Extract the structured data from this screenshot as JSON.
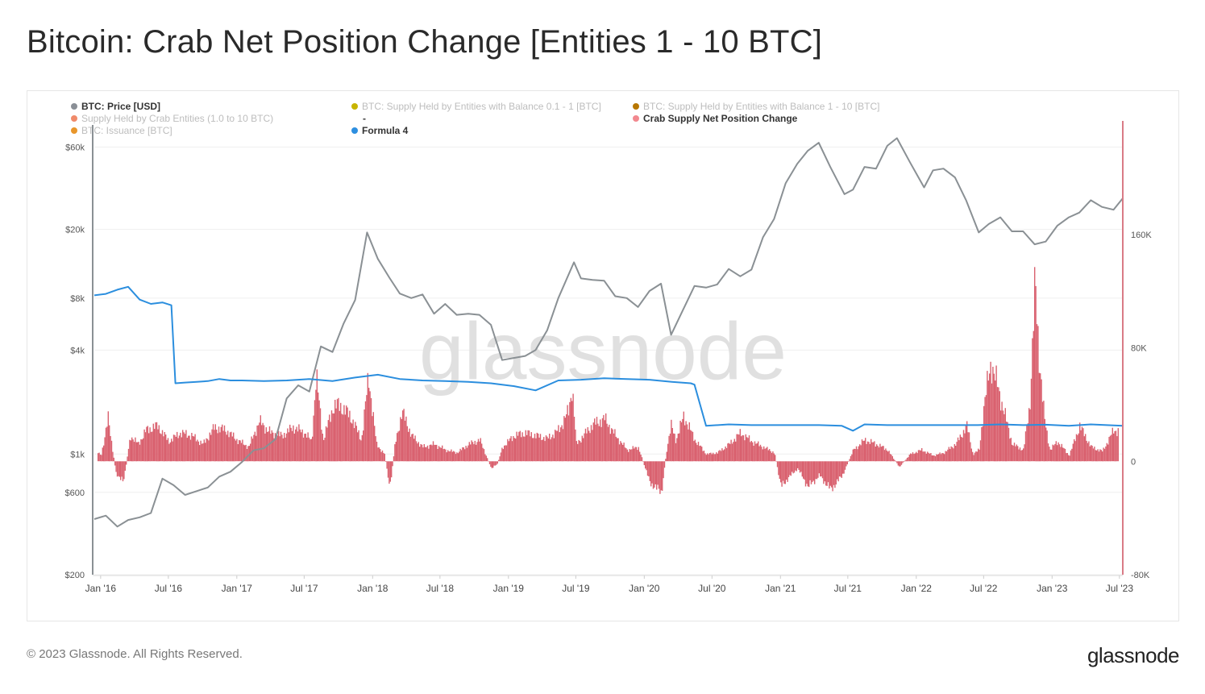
{
  "page": {
    "title": "Bitcoin: Crab Net Position Change [Entities 1 - 10 BTC]",
    "copyright": "© 2023 Glassnode. All Rights Reserved.",
    "brand": "glassnode",
    "watermark": "glassnode"
  },
  "legend": [
    {
      "label": "BTC: Price [USD]",
      "color": "#8a8f96",
      "active": true
    },
    {
      "label": "BTC: Supply Held by Entities with Balance 0.1 - 1 [BTC]",
      "color": "#c8b400",
      "active": false
    },
    {
      "label": "BTC: Supply Held by Entities with Balance 1 - 10 [BTC]",
      "color": "#b87700",
      "active": false
    },
    {
      "label": "Supply Held by Crab Entities (1.0 to 10 BTC)",
      "color": "#f08a6a",
      "active": false
    },
    {
      "label": "-",
      "color": "",
      "active": true
    },
    {
      "label": "Crab Supply Net Position Change",
      "color": "#f2888f",
      "active": true
    },
    {
      "label": "BTC: Issuance [BTC]",
      "color": "#e8962b",
      "active": false
    },
    {
      "label": "Formula 4",
      "color": "#2d8fe0",
      "active": true
    }
  ],
  "colors": {
    "price": "#8a9094",
    "formula": "#2b8ede",
    "net_change": "#d9616f",
    "right_axis": "#d97b86",
    "left_axis": "#8a9094",
    "grid": "#efefef"
  },
  "chart_data": {
    "type": "line",
    "x_ticks": [
      "Jan '16",
      "Jul '16",
      "Jan '17",
      "Jul '17",
      "Jan '18",
      "Jul '18",
      "Jan '19",
      "Jul '19",
      "Jan '20",
      "Jul '20",
      "Jan '21",
      "Jul '21",
      "Jan '22",
      "Jul '22",
      "Jan '23",
      "Jul '23"
    ],
    "x_range": [
      "2015-12-15",
      "2023-07-10"
    ],
    "left_axis": {
      "scale": "log",
      "ticks": [
        "$200",
        "$600",
        "$1k",
        "$4k",
        "$8k",
        "$20k",
        "$60k"
      ],
      "tick_values": [
        200,
        600,
        1000,
        4000,
        8000,
        20000,
        60000
      ],
      "ylim": [
        200,
        85000
      ]
    },
    "right_axis": {
      "scale": "linear",
      "ticks": [
        "-80K",
        "0",
        "80K",
        "160K"
      ],
      "tick_values": [
        -80000,
        0,
        80000,
        160000
      ],
      "ylim": [
        -80000,
        240000
      ]
    },
    "grid": true,
    "series": [
      {
        "name": "BTC: Price [USD]",
        "axis": "left",
        "x": [
          "2015-12-15",
          "2016-01-15",
          "2016-02-15",
          "2016-03-15",
          "2016-04-15",
          "2016-05-15",
          "2016-06-15",
          "2016-07-15",
          "2016-08-15",
          "2016-09-15",
          "2016-10-15",
          "2016-11-15",
          "2016-12-15",
          "2017-01-15",
          "2017-02-15",
          "2017-03-15",
          "2017-04-15",
          "2017-05-15",
          "2017-06-15",
          "2017-07-15",
          "2017-08-15",
          "2017-09-15",
          "2017-10-15",
          "2017-11-15",
          "2017-12-17",
          "2018-01-15",
          "2018-02-15",
          "2018-03-15",
          "2018-04-15",
          "2018-05-15",
          "2018-06-15",
          "2018-07-15",
          "2018-08-15",
          "2018-09-15",
          "2018-10-15",
          "2018-11-15",
          "2018-12-15",
          "2019-01-15",
          "2019-02-15",
          "2019-03-15",
          "2019-04-15",
          "2019-05-15",
          "2019-06-26",
          "2019-07-15",
          "2019-08-15",
          "2019-09-15",
          "2019-10-15",
          "2019-11-15",
          "2019-12-15",
          "2020-01-15",
          "2020-02-15",
          "2020-03-13",
          "2020-04-15",
          "2020-05-15",
          "2020-06-15",
          "2020-07-15",
          "2020-08-15",
          "2020-09-15",
          "2020-10-15",
          "2020-11-15",
          "2020-12-15",
          "2021-01-15",
          "2021-02-15",
          "2021-03-15",
          "2021-04-14",
          "2021-05-15",
          "2021-06-22",
          "2021-07-15",
          "2021-08-15",
          "2021-09-15",
          "2021-10-15",
          "2021-11-10",
          "2021-12-15",
          "2022-01-22",
          "2022-02-15",
          "2022-03-15",
          "2022-04-15",
          "2022-05-15",
          "2022-06-18",
          "2022-07-15",
          "2022-08-15",
          "2022-09-15",
          "2022-10-15",
          "2022-11-15",
          "2022-12-15",
          "2023-01-15",
          "2023-02-15",
          "2023-03-15",
          "2023-04-15",
          "2023-05-15",
          "2023-06-15",
          "2023-07-10"
        ],
        "values": [
          420,
          440,
          380,
          415,
          430,
          455,
          720,
          660,
          580,
          610,
          640,
          740,
          790,
          900,
          1050,
          1080,
          1220,
          2100,
          2500,
          2300,
          4200,
          3900,
          5700,
          7800,
          19200,
          13500,
          10500,
          8500,
          8000,
          8400,
          6500,
          7400,
          6400,
          6500,
          6400,
          5600,
          3500,
          3600,
          3700,
          4000,
          5200,
          8000,
          12900,
          10400,
          10200,
          10100,
          8200,
          8000,
          7100,
          8800,
          9700,
          4900,
          6900,
          9400,
          9200,
          9600,
          11800,
          10700,
          11700,
          18000,
          23000,
          37000,
          48000,
          57000,
          63500,
          46000,
          32000,
          34000,
          46000,
          45000,
          61000,
          67500,
          49000,
          35000,
          44000,
          45000,
          40000,
          29500,
          19200,
          21500,
          23500,
          19500,
          19500,
          16400,
          17000,
          21000,
          23500,
          25000,
          29500,
          27000,
          26000,
          30300
        ]
      },
      {
        "name": "Formula 4",
        "axis": "right",
        "x": [
          "2015-12-15",
          "2016-01-15",
          "2016-02-15",
          "2016-03-15",
          "2016-04-15",
          "2016-05-15",
          "2016-06-15",
          "2016-07-09",
          "2016-07-20",
          "2016-08-15",
          "2016-09-15",
          "2016-10-15",
          "2016-11-15",
          "2016-12-15",
          "2017-01-15",
          "2017-03-15",
          "2017-05-15",
          "2017-07-15",
          "2017-09-15",
          "2017-11-15",
          "2018-01-15",
          "2018-03-15",
          "2018-05-15",
          "2018-07-15",
          "2018-09-15",
          "2018-11-15",
          "2018-12-15",
          "2019-01-15",
          "2019-03-15",
          "2019-05-15",
          "2019-07-15",
          "2019-09-15",
          "2019-11-15",
          "2020-01-15",
          "2020-03-15",
          "2020-05-05",
          "2020-05-15",
          "2020-06-15",
          "2020-08-15",
          "2020-10-15",
          "2020-12-15",
          "2021-02-15",
          "2021-04-15",
          "2021-06-15",
          "2021-07-15",
          "2021-08-15",
          "2021-10-15",
          "2021-12-15",
          "2022-02-15",
          "2022-04-15",
          "2022-06-15",
          "2022-08-15",
          "2022-10-15",
          "2022-12-15",
          "2023-02-15",
          "2023-04-15",
          "2023-07-10"
        ],
        "values": [
          117000,
          118000,
          121000,
          123000,
          114000,
          111000,
          112000,
          110000,
          55000,
          55500,
          56000,
          56500,
          58000,
          57000,
          57000,
          56500,
          57000,
          58000,
          56500,
          59000,
          61000,
          58000,
          57000,
          56500,
          56000,
          55000,
          54000,
          53000,
          50000,
          57000,
          57500,
          58500,
          58000,
          57500,
          56000,
          55000,
          54000,
          25000,
          26000,
          25500,
          25500,
          25500,
          25500,
          25000,
          21500,
          26000,
          25500,
          25500,
          25500,
          25500,
          25500,
          26000,
          25500,
          25800,
          25000,
          26000,
          25000
        ]
      },
      {
        "name": "Crab Supply Net Position Change",
        "axis": "right",
        "type": "area",
        "x": [
          "2015-12-15",
          "2016-01-01",
          "2016-01-20",
          "2016-02-10",
          "2016-03-01",
          "2016-03-20",
          "2016-04-10",
          "2016-05-01",
          "2016-06-01",
          "2016-07-01",
          "2016-08-01",
          "2016-09-01",
          "2016-10-01",
          "2016-11-01",
          "2016-12-01",
          "2017-01-01",
          "2017-02-01",
          "2017-03-01",
          "2017-04-01",
          "2017-05-01",
          "2017-06-01",
          "2017-07-01",
          "2017-07-20",
          "2017-08-01",
          "2017-08-20",
          "2017-09-15",
          "2017-10-01",
          "2017-11-01",
          "2017-12-01",
          "2017-12-20",
          "2018-01-10",
          "2018-02-01",
          "2018-02-15",
          "2018-03-01",
          "2018-03-20",
          "2018-04-15",
          "2018-05-15",
          "2018-06-15",
          "2018-07-15",
          "2018-08-15",
          "2018-09-15",
          "2018-10-15",
          "2018-11-15",
          "2018-12-01",
          "2018-12-15",
          "2019-01-15",
          "2019-02-15",
          "2019-03-15",
          "2019-04-15",
          "2019-05-15",
          "2019-06-10",
          "2019-06-20",
          "2019-07-01",
          "2019-07-20",
          "2019-08-15",
          "2019-09-15",
          "2019-10-15",
          "2019-11-15",
          "2019-12-15",
          "2020-01-15",
          "2020-02-15",
          "2020-03-01",
          "2020-03-12",
          "2020-03-25",
          "2020-04-15",
          "2020-05-15",
          "2020-06-15",
          "2020-07-15",
          "2020-08-15",
          "2020-09-15",
          "2020-10-15",
          "2020-11-15",
          "2020-12-15",
          "2021-01-01",
          "2021-01-20",
          "2021-02-15",
          "2021-03-15",
          "2021-04-15",
          "2021-05-15",
          "2021-06-15",
          "2021-07-15",
          "2021-08-15",
          "2021-09-15",
          "2021-10-15",
          "2021-11-15",
          "2021-12-15",
          "2022-01-15",
          "2022-02-15",
          "2022-03-15",
          "2022-04-15",
          "2022-05-01",
          "2022-05-15",
          "2022-06-01",
          "2022-06-18",
          "2022-07-01",
          "2022-07-20",
          "2022-08-15",
          "2022-09-15",
          "2022-10-15",
          "2022-11-01",
          "2022-11-15",
          "2022-11-25",
          "2022-12-10",
          "2022-12-25",
          "2023-01-15",
          "2023-02-15",
          "2023-03-15",
          "2023-04-15",
          "2023-05-15",
          "2023-06-15",
          "2023-07-10"
        ],
        "values": [
          8000,
          4000,
          30000,
          -8000,
          -15000,
          18000,
          12000,
          22000,
          25000,
          14000,
          20000,
          18000,
          12000,
          24000,
          22000,
          15000,
          10000,
          28000,
          20000,
          18000,
          24000,
          20000,
          14000,
          60000,
          15000,
          38000,
          40000,
          32000,
          15000,
          60000,
          12000,
          5000,
          -20000,
          12000,
          35000,
          18000,
          10000,
          12000,
          8000,
          6000,
          12000,
          15000,
          -5000,
          -2000,
          10000,
          18000,
          20000,
          18000,
          16000,
          22000,
          35000,
          53000,
          12000,
          18000,
          26000,
          30000,
          18000,
          8000,
          10000,
          -15000,
          -22000,
          10000,
          25000,
          15000,
          32000,
          15000,
          5000,
          6000,
          12000,
          20000,
          14000,
          10000,
          6000,
          -18000,
          -12000,
          -5000,
          -18000,
          -10000,
          -20000,
          -10000,
          8000,
          15000,
          12000,
          8000,
          -4000,
          5000,
          8000,
          4000,
          6000,
          12000,
          18000,
          26000,
          5000,
          8000,
          40000,
          70000,
          44000,
          12000,
          8000,
          40000,
          125000,
          78000,
          30000,
          8000,
          14000,
          4000,
          25000,
          10000,
          7000,
          22000,
          21000
        ]
      }
    ]
  }
}
